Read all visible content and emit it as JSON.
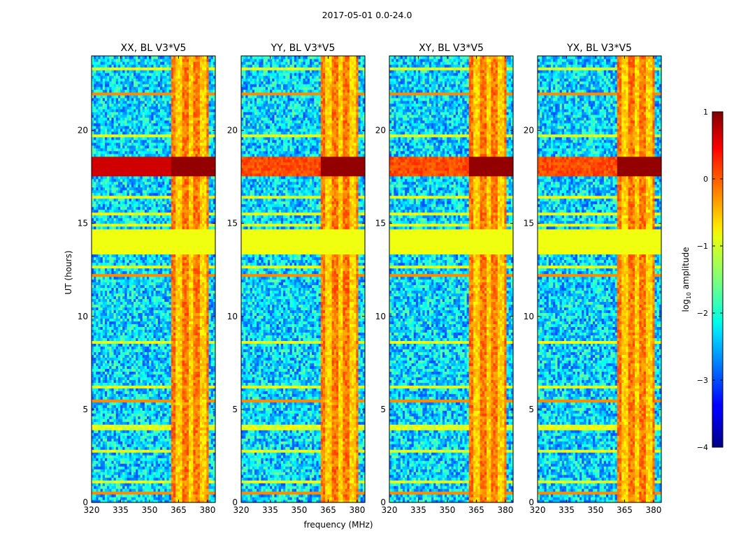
{
  "figure_title": "2017-05-01 0.0-24.0",
  "x_label": "frequency (MHz)",
  "y_label": "UT (hours)",
  "colorbar": {
    "label": "log10 amplitude",
    "label_main": "log",
    "label_sub": "10",
    "label_rest": " amplitude",
    "range": [
      -4,
      1
    ],
    "ticks": [
      "1",
      "0",
      "−1",
      "−2",
      "−3",
      "−4"
    ],
    "colormap": "jet"
  },
  "x_ticks": [
    "320",
    "335",
    "350",
    "365",
    "380"
  ],
  "y_ticks": [
    "0",
    "5",
    "10",
    "15",
    "20"
  ],
  "chart_data": [
    {
      "type": "heatmap",
      "title": "XX, BL V3*V5",
      "xlim": [
        320,
        384
      ],
      "ylim": [
        0,
        24
      ],
      "xlabel": "",
      "ylabel": "UT (hours)",
      "value_range": [
        -4,
        1
      ],
      "flagged_band_hours": [
        13.4,
        14.7
      ],
      "rfi_band_mhz": [
        361,
        381
      ],
      "strong_rfi_hours": [
        17.5,
        18.6
      ]
    },
    {
      "type": "heatmap",
      "title": "YY, BL V3*V5",
      "xlim": [
        320,
        384
      ],
      "ylim": [
        0,
        24
      ],
      "xlabel": "frequency (MHz)",
      "ylabel": "",
      "value_range": [
        -4,
        1
      ],
      "flagged_band_hours": [
        13.4,
        14.7
      ],
      "rfi_band_mhz": [
        361,
        381
      ],
      "strong_rfi_hours": [
        17.5,
        18.6
      ]
    },
    {
      "type": "heatmap",
      "title": "XY, BL V3*V5",
      "xlim": [
        320,
        384
      ],
      "ylim": [
        0,
        24
      ],
      "xlabel": "",
      "ylabel": "",
      "value_range": [
        -4,
        1
      ],
      "flagged_band_hours": [
        13.4,
        14.7
      ],
      "rfi_band_mhz": [
        361,
        381
      ],
      "strong_rfi_hours": [
        17.5,
        18.6
      ]
    },
    {
      "type": "heatmap",
      "title": "YX, BL V3*V5",
      "xlim": [
        320,
        384
      ],
      "ylim": [
        0,
        24
      ],
      "xlabel": "",
      "ylabel": "",
      "value_range": [
        -4,
        1
      ],
      "flagged_band_hours": [
        13.4,
        14.7
      ],
      "rfi_band_mhz": [
        361,
        381
      ],
      "strong_rfi_hours": [
        17.5,
        18.6
      ]
    }
  ]
}
